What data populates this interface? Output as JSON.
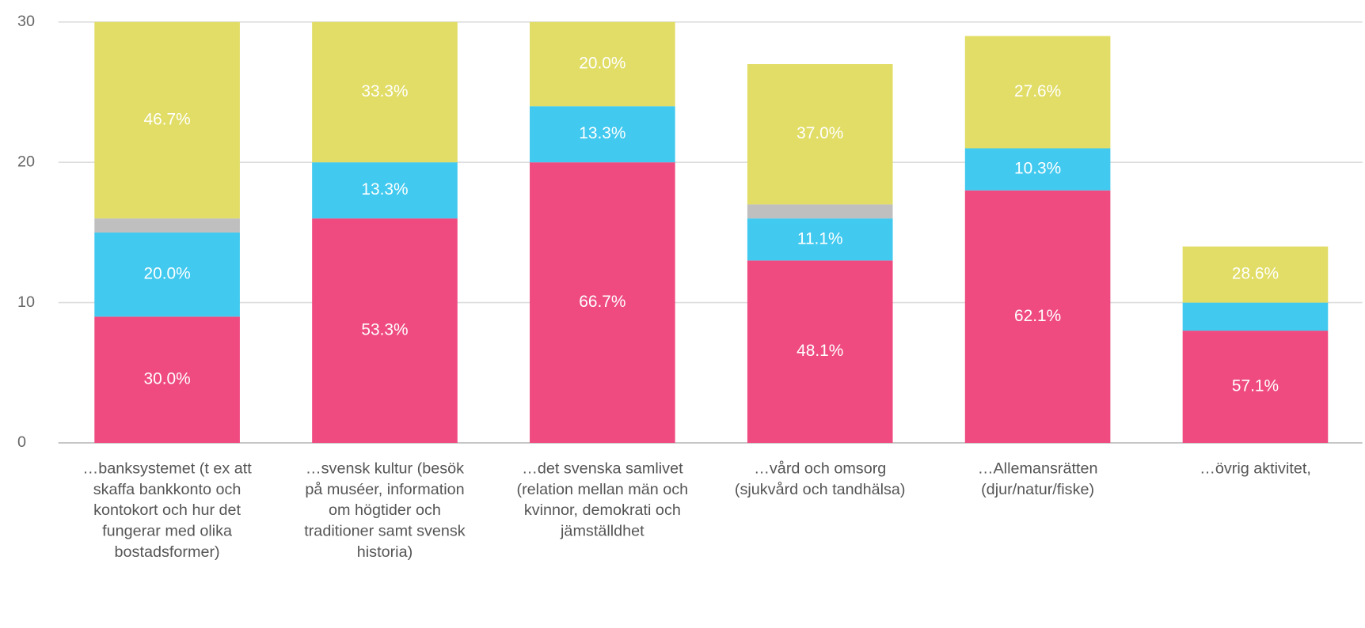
{
  "chart_data": {
    "type": "stacked_bar",
    "categories": [
      "…banksystemet (t ex att skaffa bankkonto och kontokort och hur det fungerar med olika bostadsformer)",
      "…svensk kultur (besök på muséer, information om högtider och traditioner samt svensk historia)",
      "…det svenska samlivet (relation mellan män och kvinnor, demokrati och jämställdhet",
      "…vård och omsorg (sjukvård och tandhälsa)",
      "…Allemansrätten (djur/natur/fiske)",
      "…övrig aktivitet,"
    ],
    "series": [
      {
        "color": "#ef4b81",
        "values": [
          9,
          16,
          20,
          13,
          18,
          8
        ],
        "value_labels": [
          "30.0%",
          "53.3%",
          "66.7%",
          "48.1%",
          "62.1%",
          "57.1%"
        ]
      },
      {
        "color": "#41c9ef",
        "values": [
          6,
          4,
          4,
          3,
          3,
          2
        ],
        "value_labels": [
          "20.0%",
          "13.3%",
          "13.3%",
          "11.1%",
          "10.3%",
          null
        ]
      },
      {
        "color": "#bfbfbf",
        "values": [
          1,
          0,
          0,
          1,
          0,
          0
        ]
      },
      {
        "color": "#e1dd66",
        "values": [
          14,
          10,
          6,
          10,
          8,
          4
        ],
        "value_labels": [
          "46.7%",
          "33.3%",
          "20.0%",
          "37.0%",
          "27.6%",
          "28.6%"
        ]
      }
    ],
    "ylim": [
      0,
      30
    ],
    "yticks": [
      0,
      10,
      20,
      30
    ],
    "grid": true
  }
}
